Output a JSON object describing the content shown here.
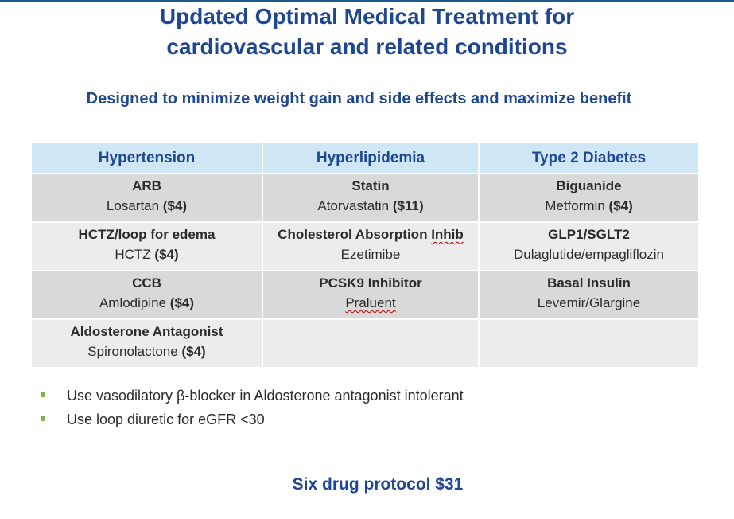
{
  "title": {
    "line1": "Updated Optimal Medical Treatment for",
    "line2": "cardiovascular and related conditions"
  },
  "subtitle": "Designed to minimize weight gain and side effects and maximize benefit",
  "table": {
    "headers": [
      "Hypertension",
      "Hyperlipidemia",
      "Type 2 Diabetes"
    ],
    "rows": [
      [
        {
          "name": "ARB",
          "drug": "Losartan",
          "cost": "($4)"
        },
        {
          "name": "Statin",
          "drug": "Atorvastatin",
          "cost": "($11)"
        },
        {
          "name": "Biguanide",
          "drug": "Metformin",
          "cost": "($4)"
        }
      ],
      [
        {
          "name": "HCTZ/loop for edema",
          "drug": "HCTZ",
          "cost": "($4)"
        },
        {
          "name_main": "Cholesterol Absorption",
          "name_flag": "Inhib",
          "drug": "Ezetimibe"
        },
        {
          "name": "GLP1/SGLT2",
          "drug": "Dulaglutide/empagliflozin"
        }
      ],
      [
        {
          "name": "CCB",
          "drug": "Amlodipine",
          "cost": "($4)"
        },
        {
          "name": "PCSK9 Inhibitor",
          "drug": "Praluent"
        },
        {
          "name": "Basal Insulin",
          "drug": "Levemir/Glargine"
        }
      ],
      [
        {
          "name": "Aldosterone Antagonist",
          "drug": "Spironolactone",
          "cost": "($4)"
        },
        {},
        {}
      ]
    ]
  },
  "notes": [
    "Use vasodilatory β-blocker in Aldosterone antagonist intolerant",
    "Use loop diuretic for eGFR <30"
  ],
  "footer": "Six drug protocol $31",
  "colors": {
    "title": "#1f4690",
    "header_bg": "#cfe7f5",
    "row_dark": "#d9d9d9",
    "row_light": "#ececec",
    "bullet": "#7ab648",
    "spellcheck": "#c00000"
  }
}
